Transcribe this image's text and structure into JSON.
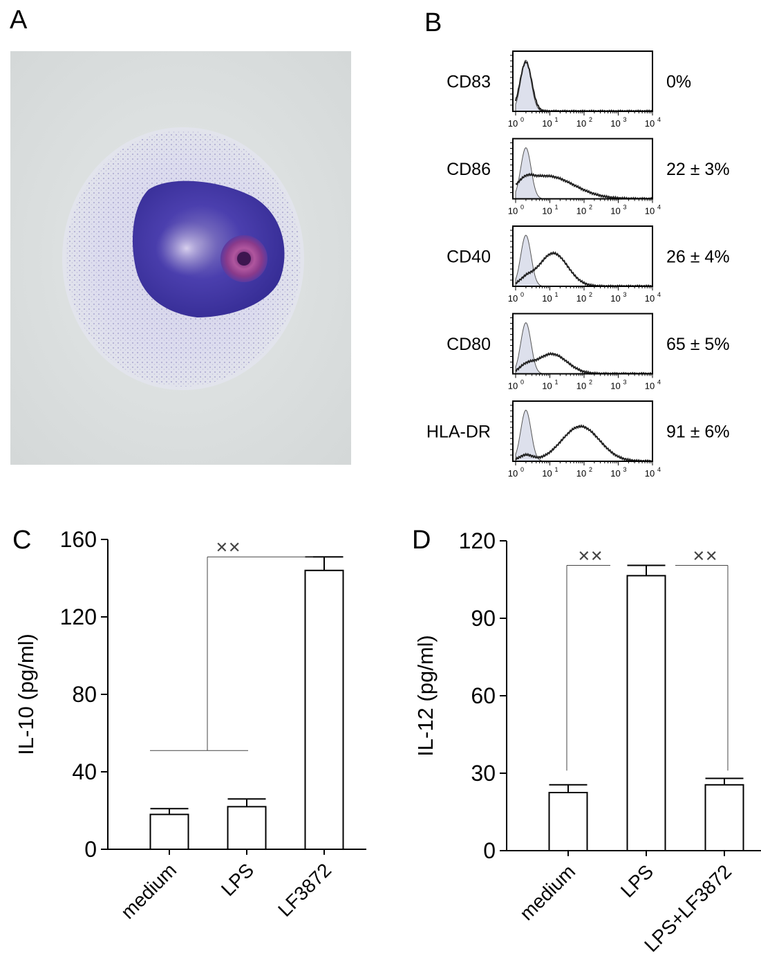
{
  "panels": {
    "a": "A",
    "b": "B",
    "c": "C",
    "d": "D"
  },
  "flow_cytometry": {
    "markers": [
      {
        "label": "CD83",
        "percent": "0%"
      },
      {
        "label": "CD86",
        "percent": "22 ± 3%"
      },
      {
        "label": "CD40",
        "percent": "26 ± 4%"
      },
      {
        "label": "CD80",
        "percent": "65 ± 5%"
      },
      {
        "label": "HLA-DR",
        "percent": "91 ± 6%"
      }
    ],
    "ticks": [
      "10",
      "10",
      "10",
      "10",
      "10"
    ],
    "tick_exponents": [
      "0",
      "1",
      "2",
      "3",
      "4"
    ]
  },
  "chart_data": [
    {
      "type": "bar",
      "panel": "C",
      "ylabel": "IL-10 (pg/ml)",
      "categories": [
        "medium",
        "LPS",
        "LF3872"
      ],
      "values": [
        18,
        22,
        144
      ],
      "errors": [
        3,
        4,
        7
      ],
      "ylim": [
        0,
        160
      ],
      "yticks": [
        "0",
        "40",
        "80",
        "120",
        "160"
      ],
      "significance": [
        {
          "label": "✕✕",
          "groups": [
            "medium+LPS",
            "LF3872"
          ]
        }
      ]
    },
    {
      "type": "bar",
      "panel": "D",
      "ylabel": "IL-12 (pg/ml)",
      "categories": [
        "medium",
        "LPS",
        "LPS+LF3872"
      ],
      "values": [
        22.5,
        106.5,
        25.5
      ],
      "errors": [
        3,
        4,
        2.5
      ],
      "ylim": [
        0,
        120
      ],
      "yticks": [
        "0",
        "30",
        "60",
        "90",
        "120"
      ],
      "significance": [
        {
          "label": "✕✕",
          "groups": [
            "medium",
            "LPS"
          ]
        },
        {
          "label": "✕✕",
          "groups": [
            "LPS",
            "LPS+LF3872"
          ]
        }
      ]
    }
  ],
  "colors": {
    "stain_dark": "#3a2f9c",
    "stain_pink": "#9a3d8f",
    "bg_gray": "#d9dcdc"
  }
}
